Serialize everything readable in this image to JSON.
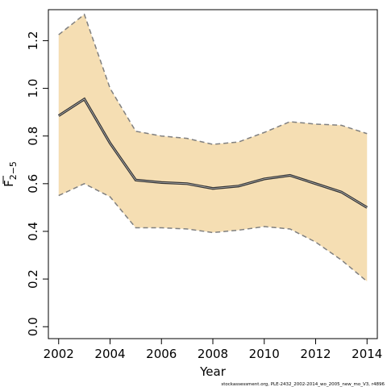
{
  "chart_data": {
    "type": "line",
    "xlabel": "Year",
    "ylabel_main": "F",
    "ylabel_sub": "2−5",
    "xlim": [
      2001.6,
      2014.4
    ],
    "ylim": [
      -0.05,
      1.33
    ],
    "x_ticks": [
      2002,
      2004,
      2006,
      2008,
      2010,
      2012,
      2014
    ],
    "y_ticks": [
      0.0,
      0.2,
      0.4,
      0.6,
      0.8,
      1.0,
      1.2
    ],
    "y_tick_labels": [
      "0.0",
      "0.2",
      "0.4",
      "0.6",
      "0.8",
      "1.0",
      "1.2"
    ],
    "x": [
      2002,
      2003,
      2004,
      2005,
      2006,
      2007,
      2008,
      2009,
      2010,
      2011,
      2012,
      2013,
      2014
    ],
    "series": [
      {
        "values": [
          0.885,
          0.955,
          0.77,
          0.615,
          0.605,
          0.6,
          0.58,
          0.59,
          0.62,
          0.635,
          0.6,
          0.565,
          0.5
        ]
      },
      {
        "values": [
          1.225,
          1.31,
          1.0,
          0.82,
          0.8,
          0.79,
          0.765,
          0.775,
          0.815,
          0.86,
          0.85,
          0.845,
          0.81
        ]
      },
      {
        "values": [
          0.55,
          0.6,
          0.545,
          0.415,
          0.415,
          0.41,
          0.395,
          0.405,
          0.42,
          0.41,
          0.355,
          0.28,
          0.19
        ]
      }
    ],
    "band_color": "#f5deb3",
    "line_color": "#333333",
    "ci_line_color": "#808080",
    "grid": false
  },
  "footnote": "stockassessment.org, PLE-2432_2002-2014_wo_2005_new_mo_V3, r4896"
}
